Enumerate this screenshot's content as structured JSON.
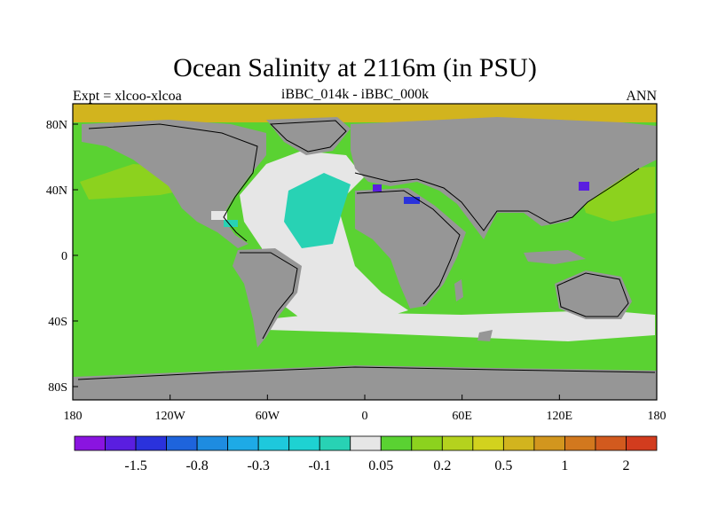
{
  "title": "Ocean Salinity at 2116m (in PSU)",
  "subtitle_left": "Expt = xlcoo-xlcoa",
  "subtitle_center": "iBBC_014k - iBBC_000k",
  "subtitle_right": "ANN",
  "y_ticks": [
    "80N",
    "40N",
    "0",
    "40S",
    "80S"
  ],
  "x_ticks": [
    "180",
    "120W",
    "60W",
    "0",
    "60E",
    "120E",
    "180"
  ],
  "colorbar": {
    "colors": [
      "#8a14e0",
      "#5a1ee0",
      "#2a32dc",
      "#1e64dc",
      "#1e8ce0",
      "#1eaae6",
      "#1ec8dc",
      "#1ed2d2",
      "#28d2b4",
      "#e6e6e6",
      "#5ad232",
      "#8cd21e",
      "#b4d21e",
      "#d2d21e",
      "#d2b41e",
      "#d2961e",
      "#d2781e",
      "#d25a1e",
      "#d23c1e"
    ],
    "labels": [
      "-1.5",
      "-0.8",
      "-0.3",
      "-0.1",
      "0.05",
      "0.2",
      "0.5",
      "1",
      "2"
    ]
  },
  "map_colors": {
    "land": "#969696",
    "ocean_default": "#5ad232",
    "near_zero": "#e6e6e6",
    "arctic": "#d2b41e",
    "cyan": "#28d2b4",
    "yellowgreen": "#8cd21e",
    "purple": "#5a1ee0",
    "blue": "#2a32dc"
  }
}
